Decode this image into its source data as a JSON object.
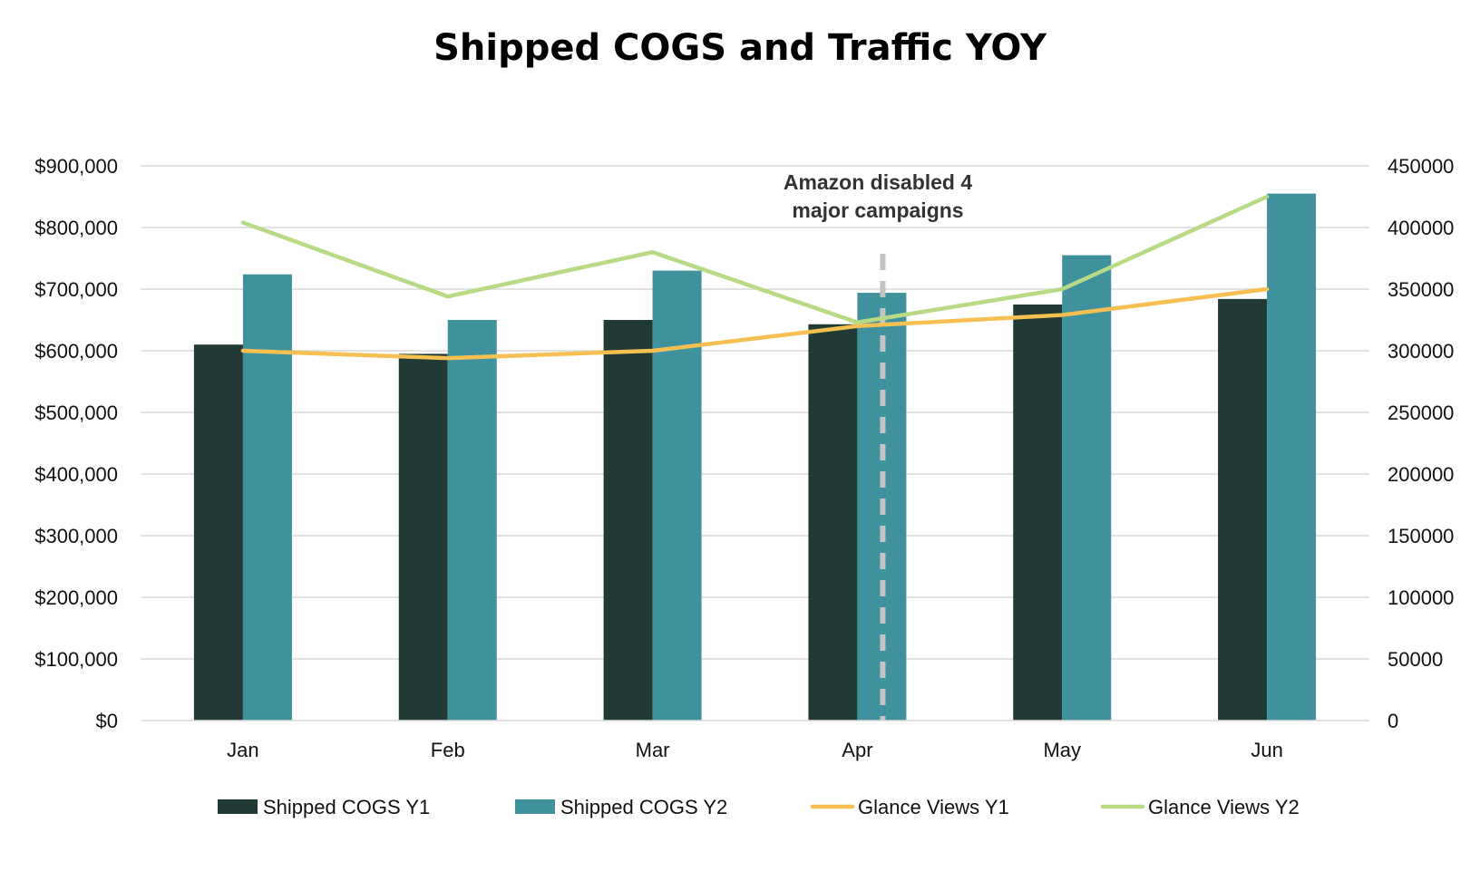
{
  "chart_data": {
    "type": "bar",
    "title": "Shipped COGS and Traffic YOY",
    "categories": [
      "Jan",
      "Feb",
      "Mar",
      "Apr",
      "May",
      "Jun"
    ],
    "y_left": {
      "ylim": [
        0,
        900000
      ],
      "ticks": [
        0,
        100000,
        200000,
        300000,
        400000,
        500000,
        600000,
        700000,
        800000,
        900000
      ],
      "tick_labels": [
        "$0",
        "$100,000",
        "$200,000",
        "$300,000",
        "$400,000",
        "$500,000",
        "$600,000",
        "$700,000",
        "$800,000",
        "$900,000"
      ]
    },
    "y_right": {
      "ylim": [
        0,
        450000
      ],
      "ticks": [
        0,
        50000,
        100000,
        150000,
        200000,
        250000,
        300000,
        350000,
        400000,
        450000
      ],
      "tick_labels": [
        "0",
        "50000",
        "100000",
        "150000",
        "200000",
        "250000",
        "300000",
        "350000",
        "400000",
        "450000"
      ]
    },
    "grid": true,
    "legend_position": "bottom",
    "series": [
      {
        "name": "Shipped COGS Y1",
        "type": "bar",
        "axis": "left",
        "color": "#213A35",
        "values": [
          610000,
          595000,
          650000,
          643000,
          675000,
          684000
        ]
      },
      {
        "name": "Shipped COGS Y2",
        "type": "bar",
        "axis": "left",
        "color": "#3F929D",
        "values": [
          724000,
          650000,
          730000,
          694000,
          755000,
          855000
        ]
      },
      {
        "name": "Glance Views Y1",
        "type": "line",
        "axis": "right",
        "color": "#F7BF52",
        "values": [
          300000,
          294000,
          300000,
          320000,
          329000,
          350000
        ]
      },
      {
        "name": "Glance Views Y2",
        "type": "line",
        "axis": "right",
        "color": "#B8DA84",
        "values": [
          404000,
          344000,
          380000,
          323000,
          350000,
          425000
        ]
      }
    ],
    "annotation": {
      "lines": [
        "Amazon disabled 4",
        "major campaigns"
      ],
      "category": "Apr",
      "marker": "dashed vertical line",
      "color": "#C4C4C4"
    }
  }
}
